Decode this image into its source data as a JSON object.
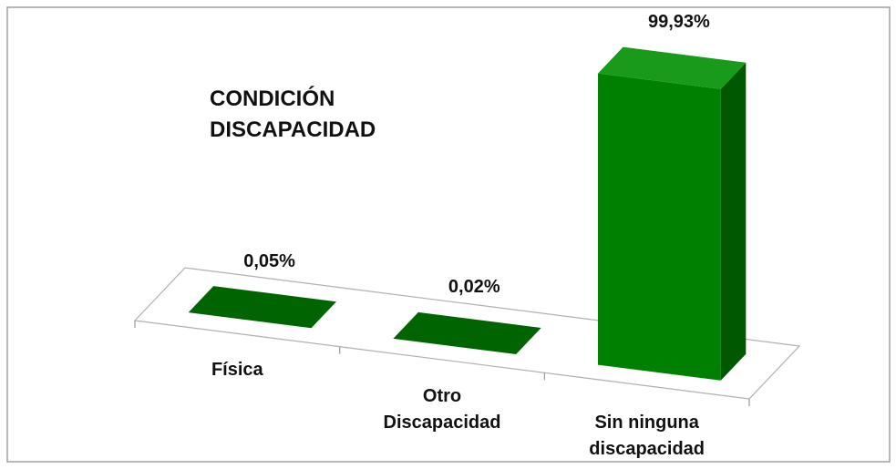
{
  "chart_data": {
    "type": "bar3d",
    "title": "CONDICIÓN DISCAPACIDAD",
    "categories": [
      "Física",
      "Otro Discapacidad",
      "Sin ninguna discapacidad"
    ],
    "values": [
      0.05,
      0.02,
      99.93
    ],
    "value_labels": [
      "0,05%",
      "0,02%",
      "99,93%"
    ],
    "color": "#008000"
  }
}
